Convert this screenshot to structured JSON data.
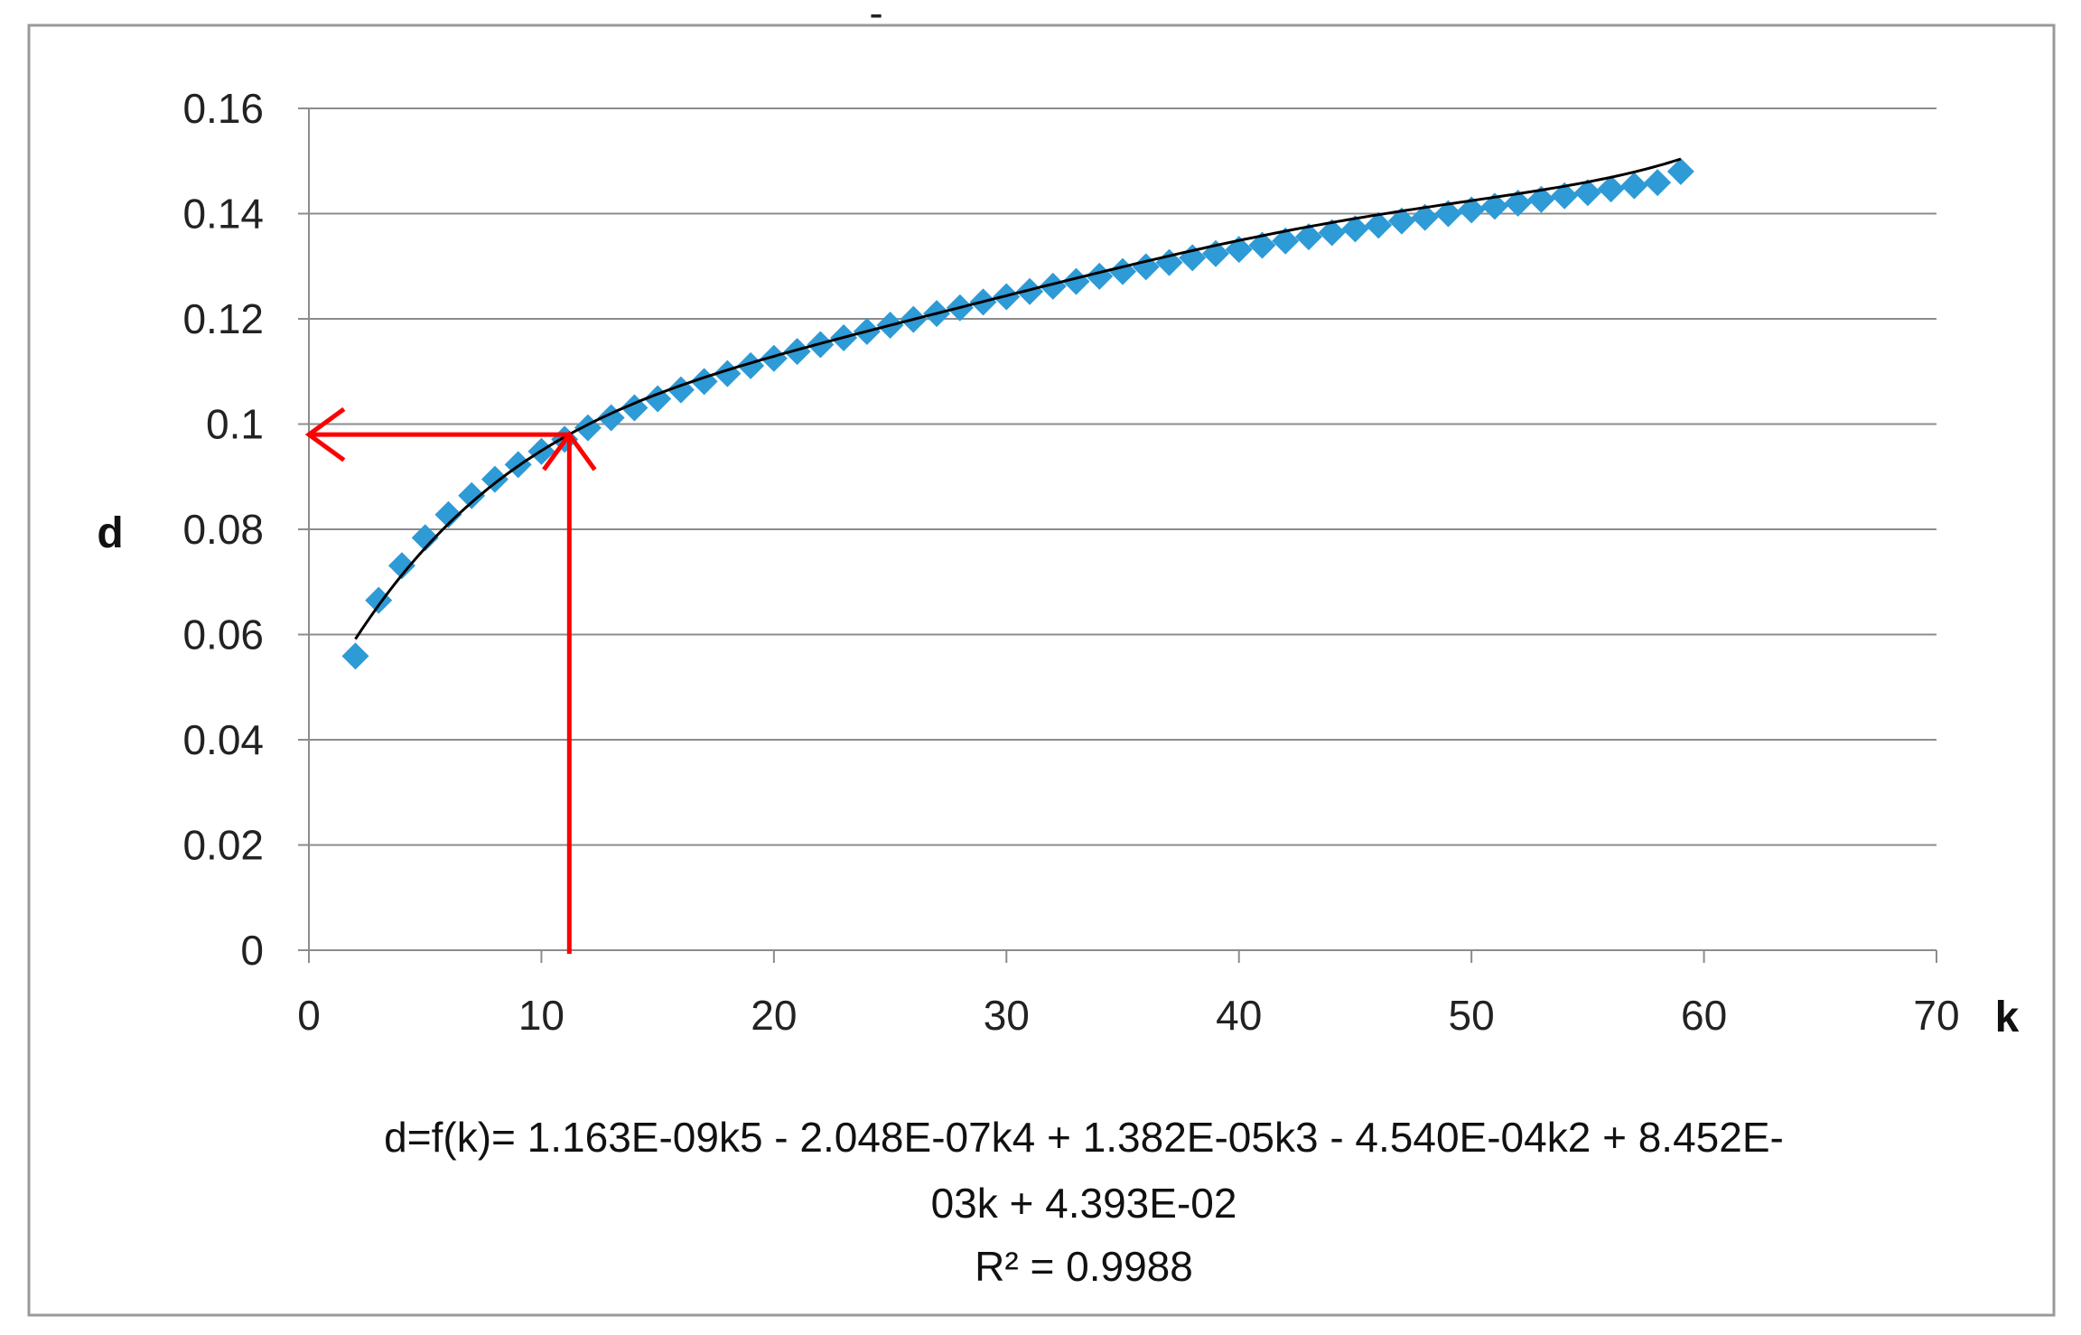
{
  "chart_data": {
    "type": "scatter",
    "title": "-",
    "xlabel": "k",
    "ylabel": "d",
    "xlim": [
      0,
      70
    ],
    "ylim": [
      0,
      0.16
    ],
    "x_ticks": [
      "0",
      "10",
      "20",
      "30",
      "40",
      "50",
      "60",
      "70"
    ],
    "y_ticks": [
      "0",
      "0.02",
      "0.04",
      "0.06",
      "0.08",
      "0.1",
      "0.12",
      "0.14",
      "0.16"
    ],
    "grid": "horizontal",
    "series": [
      {
        "marker": "diamond",
        "color": "#2e9ad6",
        "x": [
          2,
          3,
          4,
          5,
          6,
          7,
          8,
          9,
          10,
          11,
          12,
          13,
          14,
          15,
          16,
          17,
          18,
          19,
          20,
          21,
          22,
          23,
          24,
          25,
          26,
          27,
          28,
          29,
          30,
          31,
          32,
          33,
          34,
          35,
          36,
          37,
          38,
          39,
          40,
          41,
          42,
          43,
          44,
          45,
          46,
          47,
          48,
          49,
          50,
          51,
          52,
          53,
          54,
          55,
          56,
          57,
          58,
          59
        ],
        "y": [
          0.0559,
          0.0665,
          0.0731,
          0.0784,
          0.0828,
          0.0864,
          0.0895,
          0.0923,
          0.0948,
          0.0971,
          0.0993,
          0.1012,
          0.1031,
          0.1048,
          0.1065,
          0.1081,
          0.1096,
          0.1111,
          0.1125,
          0.1138,
          0.1151,
          0.1164,
          0.1176,
          0.1188,
          0.1199,
          0.121,
          0.1221,
          0.1232,
          0.1242,
          0.1252,
          0.1262,
          0.1271,
          0.1281,
          0.129,
          0.1299,
          0.1307,
          0.1316,
          0.1324,
          0.1332,
          0.134,
          0.1348,
          0.1356,
          0.1364,
          0.1371,
          0.1378,
          0.1386,
          0.1393,
          0.14,
          0.1407,
          0.1414,
          0.142,
          0.1427,
          0.1434,
          0.144,
          0.1447,
          0.1453,
          0.1459,
          0.148
        ]
      }
    ],
    "trendline": {
      "type": "polynomial",
      "order": 5,
      "color": "#000000",
      "coefficients": [
        1.163e-09,
        -2.048e-07,
        1.382e-05,
        -0.000454,
        0.008452,
        0.04393
      ],
      "x_range": [
        2,
        59
      ]
    },
    "annotation_arrows": [
      {
        "from": [
          11.2,
          0
        ],
        "to": [
          11.2,
          0.098
        ],
        "color": "#ff0000"
      },
      {
        "from": [
          11.2,
          0.098
        ],
        "to": [
          0,
          0.098
        ],
        "color": "#ff0000"
      }
    ],
    "equation_lines": [
      "d=f(k)= 1.163E-09k5 - 2.048E-07k4 + 1.382E-05k3 - 4.540E-04k2 + 8.452E-",
      "03k + 4.393E-02",
      "R² = 0.9988"
    ]
  }
}
